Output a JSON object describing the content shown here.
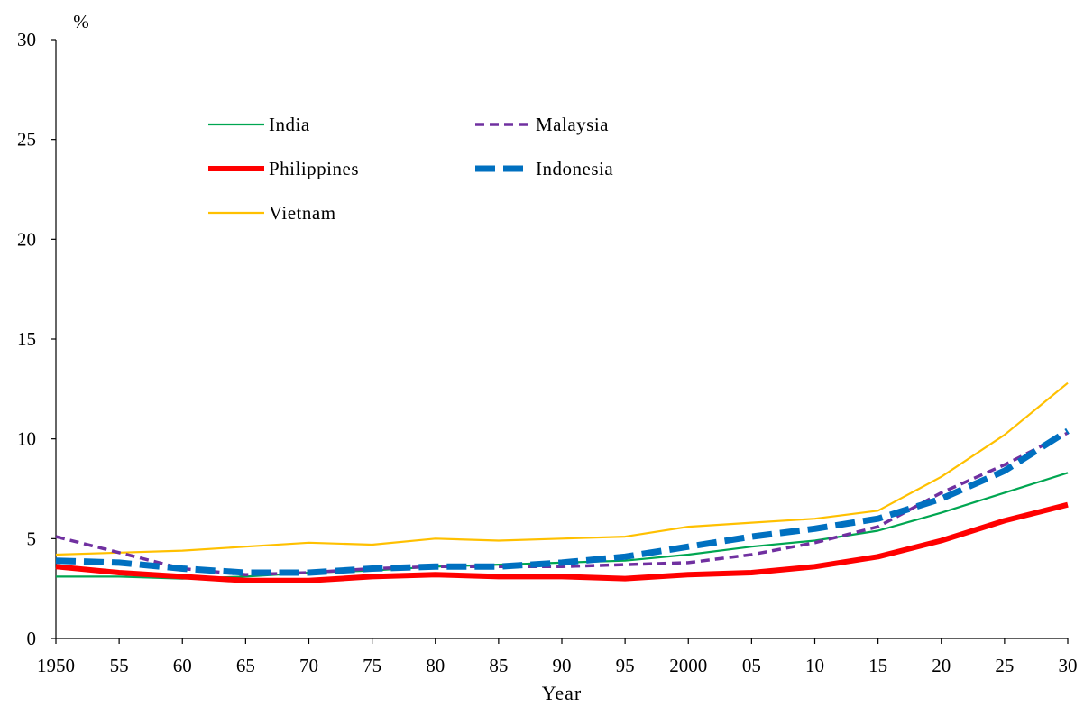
{
  "chart_data": {
    "type": "line",
    "xlabel": "Year",
    "ylabel": "%",
    "ylim": [
      0,
      30
    ],
    "yticks": [
      0,
      5,
      10,
      15,
      20,
      25,
      30
    ],
    "x": [
      1950,
      1955,
      1960,
      1965,
      1970,
      1975,
      1980,
      1985,
      1990,
      1995,
      2000,
      2005,
      2010,
      2015,
      2020,
      2025,
      2030
    ],
    "x_tick_labels": [
      "1950",
      "55",
      "60",
      "65",
      "70",
      "75",
      "80",
      "85",
      "90",
      "95",
      "2000",
      "05",
      "10",
      "15",
      "20",
      "25",
      "30"
    ],
    "grid": false,
    "legend_position": "top-left",
    "series": [
      {
        "name": "India",
        "color": "#00a651",
        "style": "solid-thin",
        "values": [
          3.1,
          3.1,
          3.0,
          3.1,
          3.3,
          3.4,
          3.6,
          3.7,
          3.8,
          3.9,
          4.2,
          4.6,
          4.9,
          5.4,
          6.3,
          7.3,
          8.3
        ]
      },
      {
        "name": "Malaysia",
        "color": "#7030a0",
        "style": "dashed",
        "values": [
          5.1,
          4.3,
          3.5,
          3.2,
          3.3,
          3.5,
          3.6,
          3.6,
          3.6,
          3.7,
          3.8,
          4.2,
          4.8,
          5.6,
          7.3,
          8.7,
          10.3
        ]
      },
      {
        "name": "Philippines",
        "color": "#ff0000",
        "style": "solid-thick",
        "values": [
          3.6,
          3.3,
          3.1,
          2.9,
          2.9,
          3.1,
          3.2,
          3.1,
          3.1,
          3.0,
          3.2,
          3.3,
          3.6,
          4.1,
          4.9,
          5.9,
          6.7
        ]
      },
      {
        "name": "Indonesia",
        "color": "#0070c0",
        "style": "dashed-thick",
        "values": [
          3.9,
          3.8,
          3.5,
          3.3,
          3.3,
          3.5,
          3.6,
          3.6,
          3.8,
          4.1,
          4.6,
          5.1,
          5.5,
          6.0,
          7.0,
          8.4,
          10.4
        ]
      },
      {
        "name": "Vietnam",
        "color": "#ffc000",
        "style": "solid-thin",
        "values": [
          4.2,
          4.3,
          4.4,
          4.6,
          4.8,
          4.7,
          5.0,
          4.9,
          5.0,
          5.1,
          5.6,
          5.8,
          6.0,
          6.4,
          8.1,
          10.2,
          12.8
        ]
      }
    ]
  }
}
